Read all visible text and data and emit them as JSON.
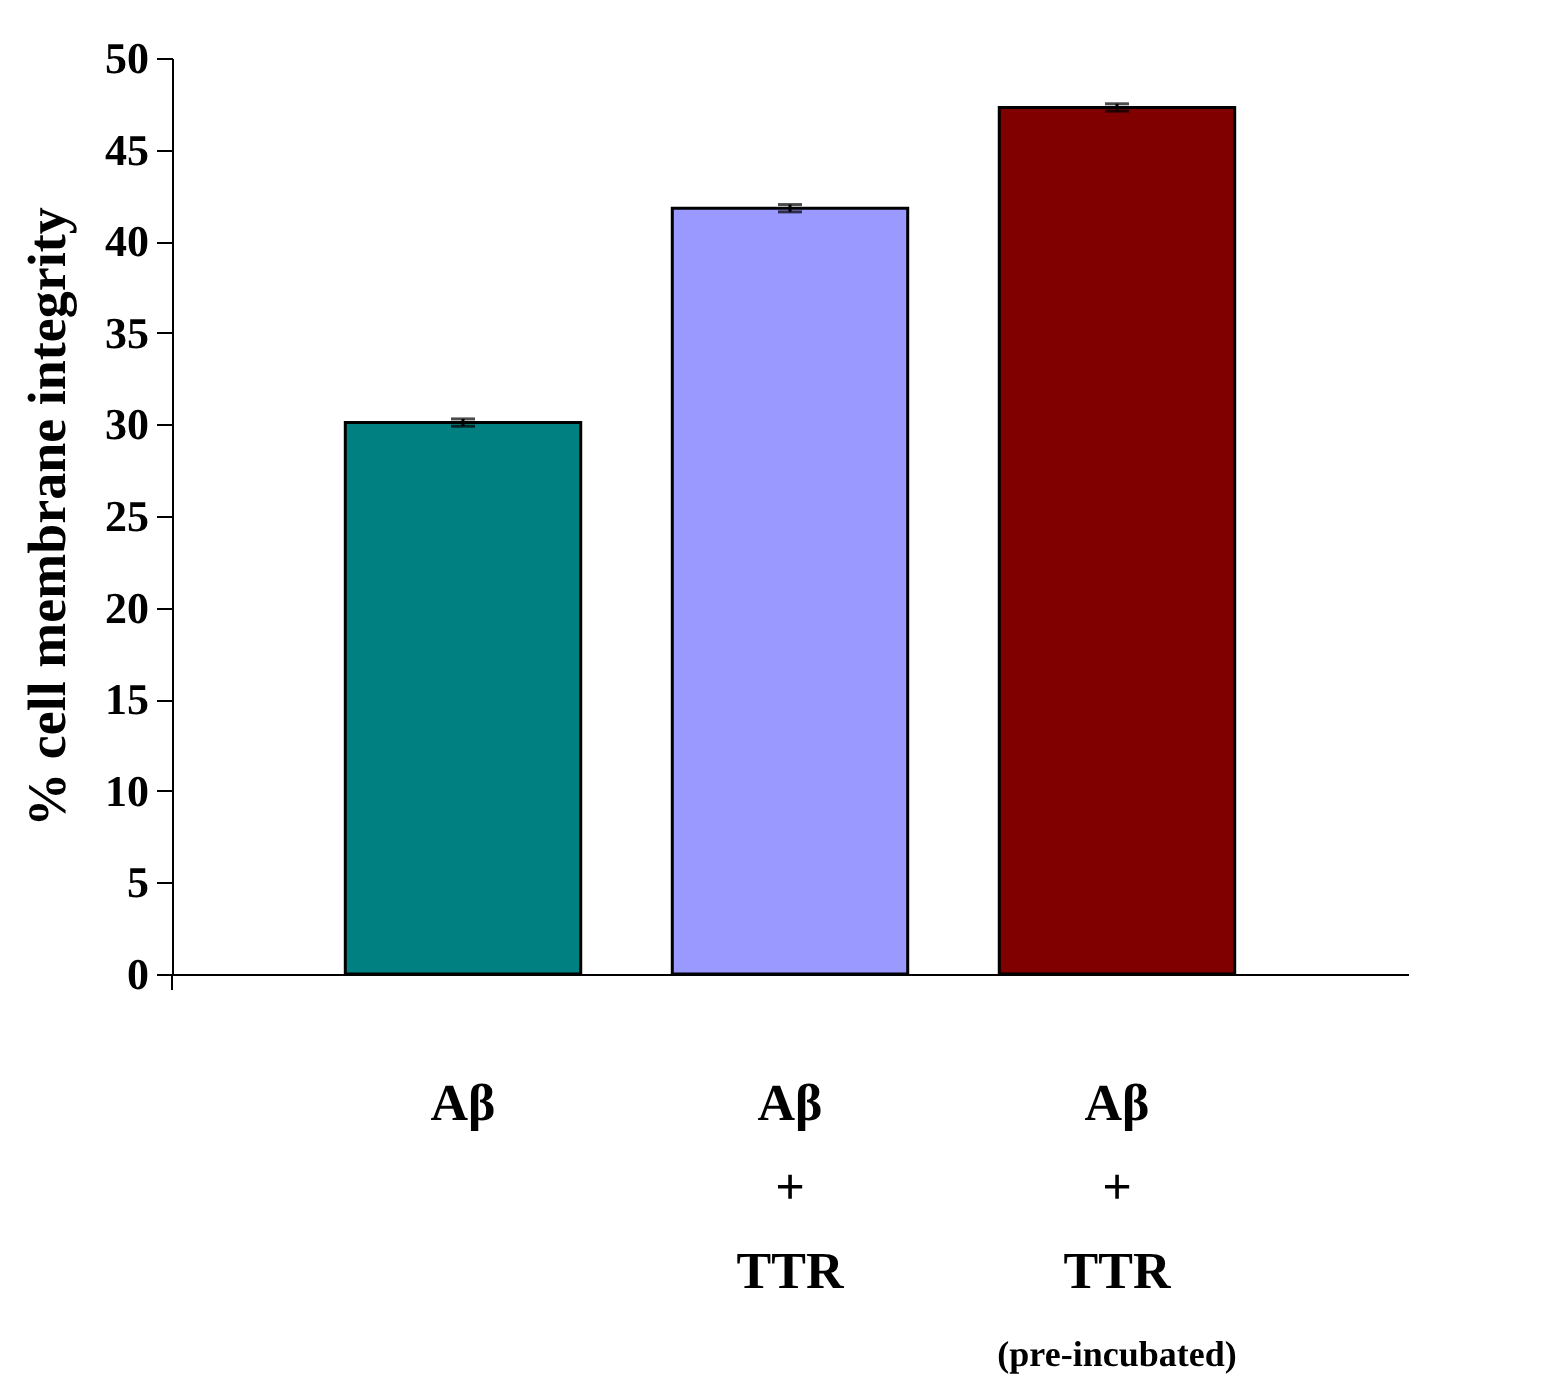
{
  "chart_data": {
    "type": "bar",
    "ylabel": "% cell membrane integrity",
    "categories": [
      "Aβ",
      "Aβ\n+\nTTR",
      "Aβ\n+\nTTR\n(pre-incubated)"
    ],
    "values": [
      30.1,
      41.8,
      47.3
    ],
    "errors": [
      0.2,
      0.2,
      0.2
    ],
    "colors": [
      "#008080",
      "#9999ff",
      "#800000"
    ],
    "ylim": [
      0,
      50
    ],
    "yticks": [
      0,
      5,
      10,
      15,
      20,
      25,
      30,
      35,
      40,
      45,
      50
    ],
    "grid": false
  }
}
